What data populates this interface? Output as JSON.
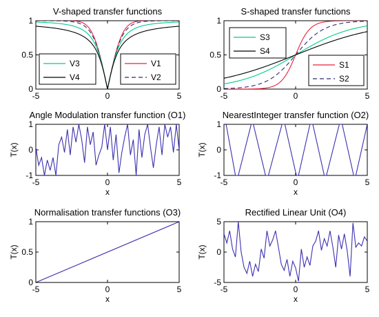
{
  "chart_data": [
    {
      "id": "v",
      "type": "line",
      "title": "V-shaped transfer functions",
      "xlabel": "",
      "ylabel": "",
      "xlim": [
        -5,
        5
      ],
      "ylim": [
        0,
        1
      ],
      "xticks": [
        "-5",
        "0",
        "5"
      ],
      "yticks": [
        "0",
        "0.5",
        "1"
      ],
      "grid": false,
      "legends": [
        {
          "placement": "left",
          "entries": [
            "V3",
            "V4"
          ]
        },
        {
          "placement": "right",
          "entries": [
            "V1",
            "V2"
          ]
        }
      ],
      "series": [
        {
          "name": "V1",
          "color": "#e8203a",
          "dash": "solid",
          "formula": "erf-abs",
          "x": [
            -5,
            -4,
            -3,
            -2,
            -1,
            -0.5,
            0,
            0.5,
            1,
            2,
            3,
            4,
            5
          ],
          "y": [
            1.0,
            1.0,
            1.0,
            0.999,
            0.795,
            0.42,
            0,
            0.42,
            0.795,
            0.999,
            1.0,
            1.0,
            1.0
          ]
        },
        {
          "name": "V2",
          "color": "#2a2a7a",
          "dash": "dashed",
          "formula": "tanh-abs",
          "x": [
            -5,
            -4,
            -3,
            -2,
            -1,
            -0.5,
            0,
            0.5,
            1,
            2,
            3,
            4,
            5
          ],
          "y": [
            1.0,
            0.999,
            0.995,
            0.964,
            0.762,
            0.462,
            0,
            0.462,
            0.762,
            0.964,
            0.995,
            0.999,
            1.0
          ]
        },
        {
          "name": "V3",
          "color": "#00cc88",
          "dash": "solid",
          "formula": "x-over-sqrt",
          "x": [
            -5,
            -4,
            -3,
            -2,
            -1,
            -0.5,
            0,
            0.5,
            1,
            2,
            3,
            4,
            5
          ],
          "y": [
            0.98,
            0.97,
            0.949,
            0.894,
            0.707,
            0.447,
            0,
            0.447,
            0.707,
            0.894,
            0.949,
            0.97,
            0.98
          ]
        },
        {
          "name": "V4",
          "color": "#000000",
          "dash": "solid",
          "formula": "arctan-abs",
          "x": [
            -5,
            -4,
            -3,
            -2,
            -1,
            -0.5,
            0,
            0.5,
            1,
            2,
            3,
            4,
            5
          ],
          "y": [
            0.918,
            0.899,
            0.866,
            0.791,
            0.586,
            0.355,
            0,
            0.355,
            0.586,
            0.791,
            0.866,
            0.899,
            0.918
          ]
        }
      ]
    },
    {
      "id": "s",
      "type": "line",
      "title": "S-shaped transfer functions",
      "xlabel": "",
      "ylabel": "",
      "xlim": [
        -5,
        5
      ],
      "ylim": [
        0,
        1
      ],
      "xticks": [
        "-5",
        "0",
        "5"
      ],
      "yticks": [
        "0",
        "0.5",
        "1"
      ],
      "grid": false,
      "legends": [
        {
          "placement": "top-left",
          "entries": [
            "S3",
            "S4"
          ]
        },
        {
          "placement": "bottom-right",
          "entries": [
            "S1",
            "S2"
          ]
        }
      ],
      "series": [
        {
          "name": "S1",
          "color": "#e8203a",
          "dash": "solid",
          "formula": "sigmoid-2x",
          "x": [
            -5,
            -4,
            -3,
            -2,
            -1,
            -0.5,
            0,
            0.5,
            1,
            2,
            3,
            4,
            5
          ],
          "y": [
            0.0,
            0.0,
            0.002,
            0.018,
            0.119,
            0.269,
            0.5,
            0.731,
            0.881,
            0.982,
            0.998,
            1.0,
            1.0
          ]
        },
        {
          "name": "S2",
          "color": "#2a2a7a",
          "dash": "dashed",
          "formula": "sigmoid-x",
          "x": [
            -5,
            -4,
            -3,
            -2,
            -1,
            -0.5,
            0,
            0.5,
            1,
            2,
            3,
            4,
            5
          ],
          "y": [
            0.007,
            0.018,
            0.047,
            0.119,
            0.269,
            0.378,
            0.5,
            0.622,
            0.731,
            0.881,
            0.953,
            0.982,
            0.993
          ]
        },
        {
          "name": "S3",
          "color": "#00cc88",
          "dash": "solid",
          "formula": "sigmoid-half-x",
          "x": [
            -5,
            -4,
            -3,
            -2,
            -1,
            -0.5,
            0,
            0.5,
            1,
            2,
            3,
            4,
            5
          ],
          "y": [
            0.076,
            0.119,
            0.182,
            0.269,
            0.378,
            0.438,
            0.5,
            0.562,
            0.622,
            0.731,
            0.818,
            0.881,
            0.924
          ]
        },
        {
          "name": "S4",
          "color": "#000000",
          "dash": "solid",
          "formula": "sigmoid-third-x",
          "x": [
            -5,
            -4,
            -3,
            -2,
            -1,
            -0.5,
            0,
            0.5,
            1,
            2,
            3,
            4,
            5
          ],
          "y": [
            0.159,
            0.209,
            0.269,
            0.339,
            0.417,
            0.458,
            0.5,
            0.542,
            0.583,
            0.661,
            0.731,
            0.791,
            0.841
          ]
        }
      ]
    },
    {
      "id": "o1",
      "type": "line",
      "title": "Angle Modulation transfer function (O1)",
      "xlabel": "x",
      "ylabel": "T(x)",
      "xlim": [
        -5,
        5
      ],
      "ylim": [
        -1,
        1
      ],
      "xticks": [
        "-5",
        "0",
        "5"
      ],
      "yticks": [
        "-1",
        "0",
        "1"
      ],
      "grid": false,
      "series": [
        {
          "name": "",
          "color": "#3a2fb0",
          "dash": "solid",
          "x": [
            -5.0,
            -4.8,
            -4.6,
            -4.4,
            -4.2,
            -4.0,
            -3.8,
            -3.6,
            -3.4,
            -3.2,
            -3.0,
            -2.8,
            -2.6,
            -2.4,
            -2.2,
            -2.0,
            -1.8,
            -1.6,
            -1.4,
            -1.2,
            -1.0,
            -0.8,
            -0.6,
            -0.4,
            -0.2,
            0.0,
            0.2,
            0.4,
            0.6,
            0.8,
            1.0,
            1.2,
            1.4,
            1.6,
            1.8,
            2.0,
            2.2,
            2.4,
            2.6,
            2.8,
            3.0,
            3.2,
            3.4,
            3.6,
            3.8,
            4.0,
            4.2,
            4.4,
            4.6,
            4.8,
            5.0
          ],
          "y": [
            0.1,
            -0.6,
            -0.3,
            -1.0,
            -0.4,
            -0.8,
            -0.3,
            -1.0,
            0.2,
            0.5,
            -0.1,
            0.8,
            -0.2,
            0.9,
            0.3,
            1.0,
            0.4,
            -0.5,
            0.9,
            0.2,
            0.7,
            -0.6,
            -0.2,
            0.1,
            1.0,
            0.0,
            0.9,
            -0.4,
            0.6,
            -0.9,
            -0.1,
            0.5,
            1.0,
            -0.2,
            0.4,
            -1.0,
            0.8,
            -0.3,
            0.6,
            1.0,
            0.1,
            -0.7,
            0.2,
            0.9,
            -0.2,
            1.0,
            0.5,
            0.9,
            -0.1,
            1.0,
            0.0
          ]
        }
      ]
    },
    {
      "id": "o2",
      "type": "line",
      "title": "NearestInteger transfer function (O2)",
      "xlabel": "x",
      "ylabel": "T(x)",
      "xlim": [
        -5,
        5
      ],
      "ylim": [
        -1,
        1
      ],
      "xticks": [
        "-5",
        "0",
        "5"
      ],
      "yticks": [
        "-1",
        "0",
        "1"
      ],
      "grid": false,
      "series": [
        {
          "name": "",
          "color": "#3a2fb0",
          "dash": "solid",
          "x": [
            -5.0,
            -4.85,
            -4.2,
            -4.0,
            -3.1,
            -2.95,
            -2.1,
            -1.9,
            -0.95,
            -0.75,
            0.05,
            0.2,
            1.0,
            1.2,
            2.0,
            2.15,
            3.05,
            3.25,
            4.05,
            4.2,
            5.0
          ],
          "y": [
            1.0,
            1.0,
            -1.0,
            -1.0,
            1.0,
            1.0,
            -1.0,
            -1.0,
            1.0,
            1.0,
            -1.0,
            -1.0,
            1.0,
            1.0,
            -1.0,
            -1.0,
            1.0,
            1.0,
            -1.0,
            -1.0,
            1.0
          ]
        }
      ]
    },
    {
      "id": "o3",
      "type": "line",
      "title": "Normalisation transfer functions (O3)",
      "xlabel": "x",
      "ylabel": "T(x)",
      "xlim": [
        -5,
        5
      ],
      "ylim": [
        0,
        1
      ],
      "xticks": [
        "-5",
        "0",
        "5"
      ],
      "yticks": [
        "0",
        "0.5",
        "1"
      ],
      "grid": false,
      "series": [
        {
          "name": "",
          "color": "#3a2fb0",
          "dash": "solid",
          "x": [
            -5,
            5
          ],
          "y": [
            0,
            1
          ]
        }
      ]
    },
    {
      "id": "o4",
      "type": "line",
      "title": "Rectified Linear Unit (O4)",
      "xlabel": "x",
      "ylabel": "T(x)",
      "xlim": [
        -5,
        5
      ],
      "ylim": [
        -5,
        5
      ],
      "xticks": [
        "-5",
        "0",
        "5"
      ],
      "yticks": [
        "-5",
        "0",
        "5"
      ],
      "grid": false,
      "series": [
        {
          "name": "",
          "color": "#3a2fb0",
          "dash": "solid",
          "x": [
            -5.0,
            -4.8,
            -4.6,
            -4.4,
            -4.2,
            -4.0,
            -3.8,
            -3.6,
            -3.4,
            -3.2,
            -3.0,
            -2.8,
            -2.6,
            -2.4,
            -2.2,
            -2.0,
            -1.8,
            -1.6,
            -1.4,
            -1.2,
            -1.0,
            -0.8,
            -0.6,
            -0.4,
            -0.2,
            0.0,
            0.2,
            0.4,
            0.6,
            0.8,
            1.0,
            1.2,
            1.4,
            1.6,
            1.8,
            2.0,
            2.2,
            2.4,
            2.6,
            2.8,
            3.0,
            3.2,
            3.4,
            3.6,
            3.8,
            4.0,
            4.2,
            4.4,
            4.6,
            4.8,
            5.0
          ],
          "y": [
            3.0,
            1.5,
            3.5,
            0.5,
            -0.8,
            5.0,
            0.0,
            -2.5,
            -3.5,
            -1.5,
            -4.0,
            -2.0,
            -3.2,
            0.5,
            -1.0,
            3.5,
            1.0,
            2.0,
            3.5,
            0.8,
            -2.0,
            -3.0,
            -1.2,
            -4.0,
            -1.5,
            -2.6,
            -4.8,
            0.5,
            -2.5,
            -0.8,
            -2.2,
            1.0,
            1.8,
            3.5,
            0.3,
            2.2,
            1.0,
            3.5,
            0.8,
            -2.5,
            2.8,
            0.5,
            3.0,
            0.2,
            -4.0,
            4.8,
            0.8,
            1.5,
            1.0,
            2.5,
            1.8
          ]
        }
      ]
    }
  ]
}
